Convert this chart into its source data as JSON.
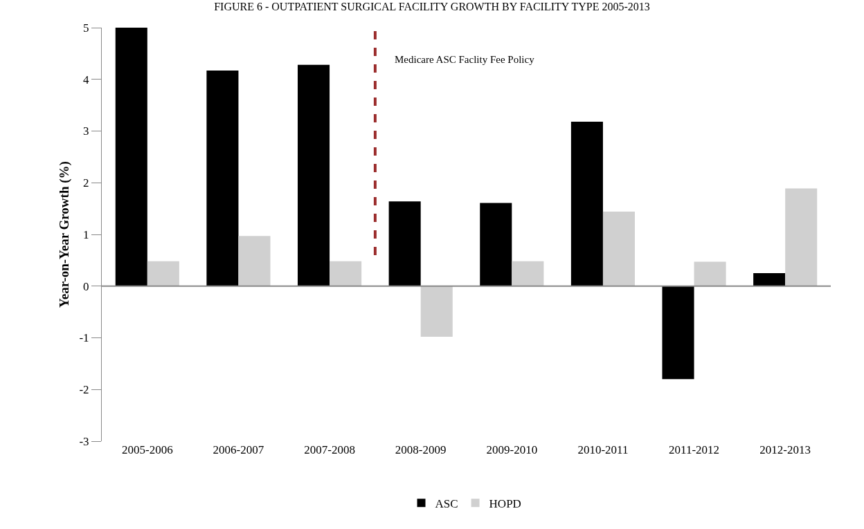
{
  "chart_data": {
    "type": "bar",
    "title": "FIGURE 6 - OUTPATIENT SURGICAL FACILITY GROWTH BY FACILITY TYPE 2005-2013",
    "ylabel": "Year-on-Year Growth (%)",
    "categories": [
      "2005-2006",
      "2006-2007",
      "2007-2008",
      "2008-2009",
      "2009-2010",
      "2010-2011",
      "2011-2012",
      "2012-2013"
    ],
    "series": [
      {
        "name": "ASC",
        "color": "#000000",
        "values": [
          5.0,
          4.17,
          4.28,
          1.64,
          1.61,
          3.18,
          -1.8,
          0.25
        ]
      },
      {
        "name": "HOPD",
        "color": "#d0d0d0",
        "values": [
          0.48,
          0.97,
          0.48,
          -0.98,
          0.48,
          1.44,
          0.47,
          1.89
        ]
      }
    ],
    "ylim": [
      -3,
      5
    ],
    "yticks": [
      -3,
      -2,
      -1,
      0,
      1,
      2,
      3,
      4,
      5
    ],
    "legend": "bottom",
    "annotations": [
      "Medicare ASC Faclity Fee Policy"
    ]
  }
}
